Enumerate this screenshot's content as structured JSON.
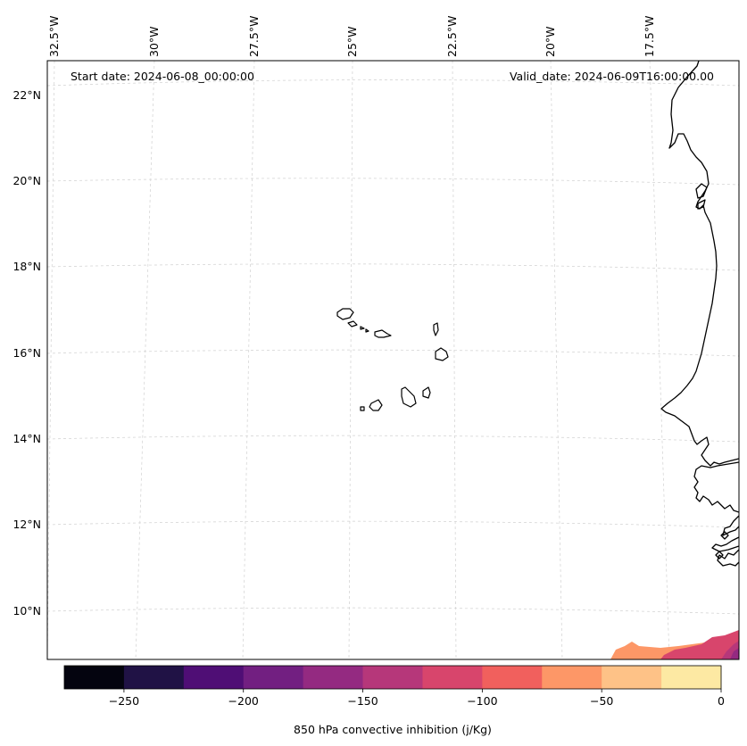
{
  "map": {
    "start_date_label": "Start date: 2024-06-08_00:00:00",
    "valid_date_label": "Valid_date: 2024-06-09T16:00:00.00",
    "lon_labels": [
      "32.5°W",
      "30°W",
      "27.5°W",
      "25°W",
      "22.5°W",
      "20°W",
      "17.5°W"
    ],
    "lat_labels": [
      "22°N",
      "20°N",
      "18°N",
      "16°N",
      "14°N",
      "12°N",
      "10°N"
    ],
    "gridlines": true,
    "projection": "Lambert conformal",
    "region": "Cabo Verde / West African coast"
  },
  "colorbar": {
    "label": "850 hPa convective inhibition (j/Kg)",
    "tick_labels": [
      "−250",
      "−200",
      "−150",
      "−100",
      "−50",
      "0"
    ],
    "range": [
      -275,
      0
    ],
    "step": 25,
    "colors": [
      "#04040f",
      "#201245",
      "#4f0e75",
      "#721f81",
      "#942a81",
      "#b6377a",
      "#d8456c",
      "#f1605d",
      "#fd9767",
      "#fec287",
      "#fde9a3"
    ]
  }
}
